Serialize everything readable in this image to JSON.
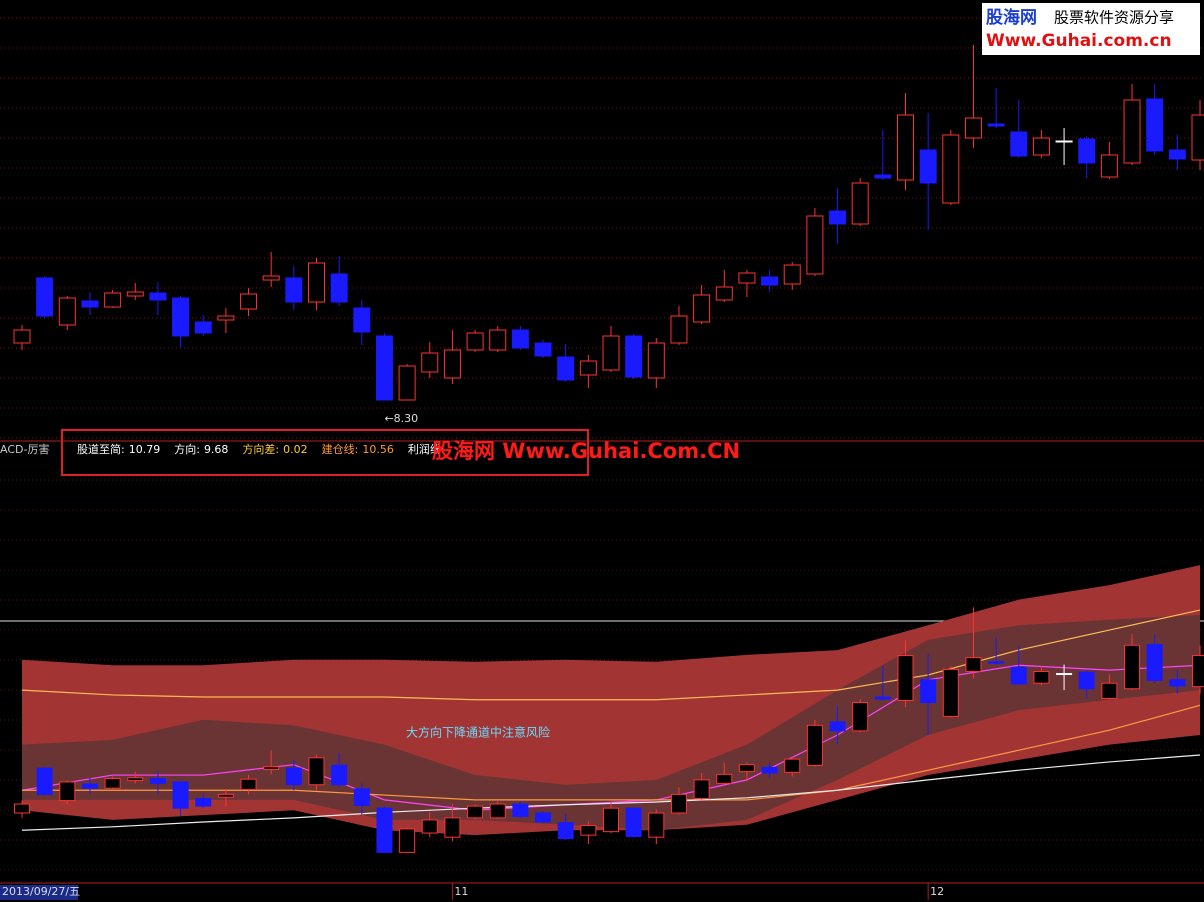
{
  "logo": {
    "name": "股海网",
    "slogan": "股票软件资源分享",
    "url": "Www.Guhai.com.cn"
  },
  "chart_data": {
    "type": "candlestick",
    "indicator_name": "ACD-厉害",
    "open": [
      8.87,
      9.52,
      9.05,
      9.29,
      9.23,
      9.34,
      9.37,
      9.32,
      9.08,
      9.1,
      9.21,
      9.5,
      9.52,
      9.28,
      9.56,
      9.22,
      8.94,
      8.3,
      8.58,
      8.52,
      8.8,
      8.8,
      9.0,
      8.87,
      8.73,
      8.55,
      8.6,
      8.94,
      8.52,
      8.87,
      9.08,
      9.3,
      9.47,
      9.53,
      9.46,
      9.56,
      10.19,
      10.06,
      10.55,
      10.5,
      10.8,
      10.27,
      10.92,
      11.06,
      10.98,
      10.75,
      10.89,
      10.91,
      10.53,
      10.67,
      11.31,
      10.8,
      10.7
    ],
    "high": [
      9.05,
      9.54,
      9.34,
      9.38,
      9.4,
      9.47,
      9.48,
      9.34,
      9.15,
      9.22,
      9.42,
      9.78,
      9.64,
      9.72,
      9.74,
      9.3,
      8.97,
      8.66,
      8.88,
      9.0,
      9.0,
      9.04,
      9.04,
      8.9,
      8.86,
      8.75,
      9.04,
      8.96,
      8.92,
      9.24,
      9.45,
      9.6,
      9.6,
      9.6,
      9.68,
      10.22,
      10.42,
      10.52,
      11.0,
      11.37,
      11.17,
      11.0,
      11.85,
      11.42,
      11.3,
      11.0,
      11.02,
      10.94,
      10.88,
      11.46,
      11.46,
      10.95,
      11.3
    ],
    "low": [
      8.8,
      9.12,
      9.0,
      9.15,
      9.22,
      9.3,
      9.15,
      8.82,
      8.94,
      8.97,
      9.14,
      9.43,
      9.2,
      9.2,
      9.24,
      8.85,
      8.3,
      8.3,
      8.52,
      8.46,
      8.78,
      8.78,
      8.8,
      8.72,
      8.48,
      8.42,
      8.58,
      8.51,
      8.42,
      8.85,
      9.06,
      9.28,
      9.33,
      9.38,
      9.4,
      9.54,
      9.86,
      10.04,
      10.5,
      10.4,
      10.0,
      10.25,
      10.82,
      11.02,
      10.72,
      10.72,
      10.65,
      10.52,
      10.51,
      10.65,
      10.75,
      10.6,
      10.6
    ],
    "close": [
      9.0,
      9.14,
      9.32,
      9.23,
      9.37,
      9.38,
      9.3,
      8.94,
      8.97,
      9.14,
      9.36,
      9.54,
      9.28,
      9.67,
      9.28,
      8.98,
      8.3,
      8.64,
      8.77,
      8.8,
      8.97,
      9.0,
      8.82,
      8.74,
      8.5,
      8.69,
      8.94,
      8.53,
      8.87,
      9.14,
      9.35,
      9.43,
      9.57,
      9.45,
      9.65,
      10.14,
      10.06,
      10.47,
      10.52,
      11.15,
      10.47,
      10.95,
      11.12,
      11.04,
      10.74,
      10.92,
      10.89,
      10.67,
      10.75,
      11.3,
      10.79,
      10.71,
      11.15
    ],
    "colors": {
      "up": "#ff3232",
      "down": "#1a1aff",
      "flat": "#ffffff"
    },
    "ylim": [
      7.9,
      12.3
    ],
    "y2lim": [
      7.9,
      14.2
    ],
    "low_label": {
      "value": 8.3,
      "label": "←8.30"
    },
    "legend": [
      {
        "label": "股道至简:",
        "value": 10.79,
        "color": "#ffffff"
      },
      {
        "label": "方向:",
        "value": 9.68,
        "color": "#ffffff"
      },
      {
        "label": "方向差:",
        "value": 0.02,
        "color": "#ffcc33"
      },
      {
        "label": "建仓线:",
        "value": 10.56,
        "color": "#ff9933"
      },
      {
        "label": "利润线:",
        "color": "#ffffff"
      }
    ],
    "watermark": "股海网 Www.Guhai.Com.CN",
    "note": "大方向下降通道中注意风险",
    "band_index": [
      0,
      4,
      8,
      12,
      16,
      20,
      24,
      28,
      32,
      36,
      40,
      44,
      48,
      52
    ],
    "bands": [
      {
        "color": "#a33434",
        "upper": [
          11.09,
          11.01,
          11.01,
          11.09,
          11.09,
          11.06,
          11.09,
          11.06,
          11.16,
          11.23,
          11.59,
          11.96,
          12.17,
          12.46
        ],
        "lower": [
          8.91,
          8.77,
          8.84,
          8.91,
          8.62,
          8.55,
          8.62,
          8.62,
          8.7,
          9.06,
          9.42,
          9.64,
          9.86,
          10.0
        ]
      },
      {
        "color": "#6a3434",
        "upper": [
          9.86,
          9.93,
          10.22,
          10.14,
          9.86,
          9.42,
          9.28,
          9.35,
          9.86,
          10.65,
          11.38,
          11.59,
          11.67,
          11.74
        ],
        "lower": [
          9.06,
          9.06,
          9.06,
          9.06,
          8.77,
          8.77,
          8.7,
          8.62,
          8.77,
          9.35,
          10.0,
          10.36,
          10.51,
          10.65
        ]
      }
    ],
    "lines": [
      {
        "color": "#ffbb55",
        "values": [
          10.65,
          10.58,
          10.55,
          10.55,
          10.55,
          10.51,
          10.51,
          10.51,
          10.58,
          10.65,
          10.87,
          11.23,
          11.52,
          11.81
        ]
      },
      {
        "color": "#ff44ff",
        "values": [
          9.2,
          9.42,
          9.42,
          9.57,
          9.06,
          8.91,
          8.99,
          9.06,
          9.35,
          10.0,
          10.8,
          11.01,
          10.94,
          11.01
        ]
      },
      {
        "color": "#ff9944",
        "values": [
          9.2,
          9.2,
          9.2,
          9.2,
          9.13,
          9.06,
          9.06,
          9.06,
          9.06,
          9.2,
          9.49,
          9.78,
          10.07,
          10.43
        ]
      },
      {
        "color": "#eeeeee",
        "values": [
          8.62,
          8.67,
          8.74,
          8.8,
          8.88,
          8.94,
          8.99,
          9.03,
          9.09,
          9.2,
          9.35,
          9.49,
          9.61,
          9.71
        ]
      }
    ],
    "x_labels": [
      {
        "index": 0,
        "label": "2013/09/27/五"
      },
      {
        "index": 19,
        "label": "11"
      },
      {
        "index": 40,
        "label": "12"
      }
    ]
  }
}
